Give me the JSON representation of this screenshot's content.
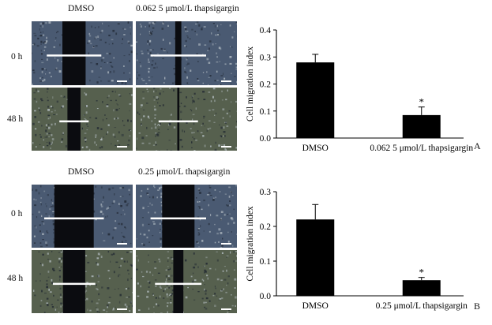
{
  "figure": {
    "panel_a": {
      "letter": "A",
      "col_labels": [
        "DMSO",
        "0.062 5 μmol/L thapsigargin"
      ],
      "row_labels": [
        "0 h",
        "48 h"
      ],
      "cells": [
        {
          "gap": 0.23,
          "line": 0.54
        },
        {
          "gap": 0.06,
          "line": 0.55
        },
        {
          "gap": 0.13,
          "line": 0.29
        },
        {
          "gap": 0.02,
          "line": 0.39
        }
      ]
    },
    "panel_b": {
      "letter": "B",
      "col_labels": [
        "DMSO",
        "0.25 μmol/L thapsigargin"
      ],
      "row_labels": [
        "0 h",
        "48 h"
      ],
      "cells": [
        {
          "gap": 0.39,
          "line": 0.59
        },
        {
          "gap": 0.32,
          "line": 0.55
        },
        {
          "gap": 0.22,
          "line": 0.42
        },
        {
          "gap": 0.1,
          "line": 0.46
        }
      ]
    }
  },
  "chart_data": [
    {
      "type": "bar",
      "ylabel": "Cell migration index",
      "categories": [
        "DMSO",
        "0.062 5 μmol/L thapsigargin"
      ],
      "values": [
        0.28,
        0.085
      ],
      "errors": [
        0.03,
        0.03
      ],
      "annotations": [
        "",
        "*"
      ],
      "ylim": [
        0,
        0.4
      ],
      "yticks": [
        "0.0",
        "0.1",
        "0.2",
        "0.3",
        "0.4"
      ],
      "tick_values": [
        0,
        0.1,
        0.2,
        0.3,
        0.4
      ],
      "bar_color": "#000000",
      "grid": false
    },
    {
      "type": "bar",
      "ylabel": "Cell migration index",
      "categories": [
        "DMSO",
        "0.25 μmol/L thapsigargin"
      ],
      "values": [
        0.22,
        0.045
      ],
      "errors": [
        0.043,
        0.008
      ],
      "annotations": [
        "",
        "*"
      ],
      "ylim": [
        0,
        0.3
      ],
      "yticks": [
        "0.0",
        "0.1",
        "0.2",
        "0.3"
      ],
      "tick_values": [
        0,
        0.1,
        0.2,
        0.3
      ],
      "bar_color": "#000000",
      "grid": false
    }
  ],
  "colors": {
    "micro_bg_0h": "#4a5a72",
    "micro_bg_48h": "#56604e",
    "gap": "#0b0c10",
    "scale_line": "#ffffff"
  }
}
